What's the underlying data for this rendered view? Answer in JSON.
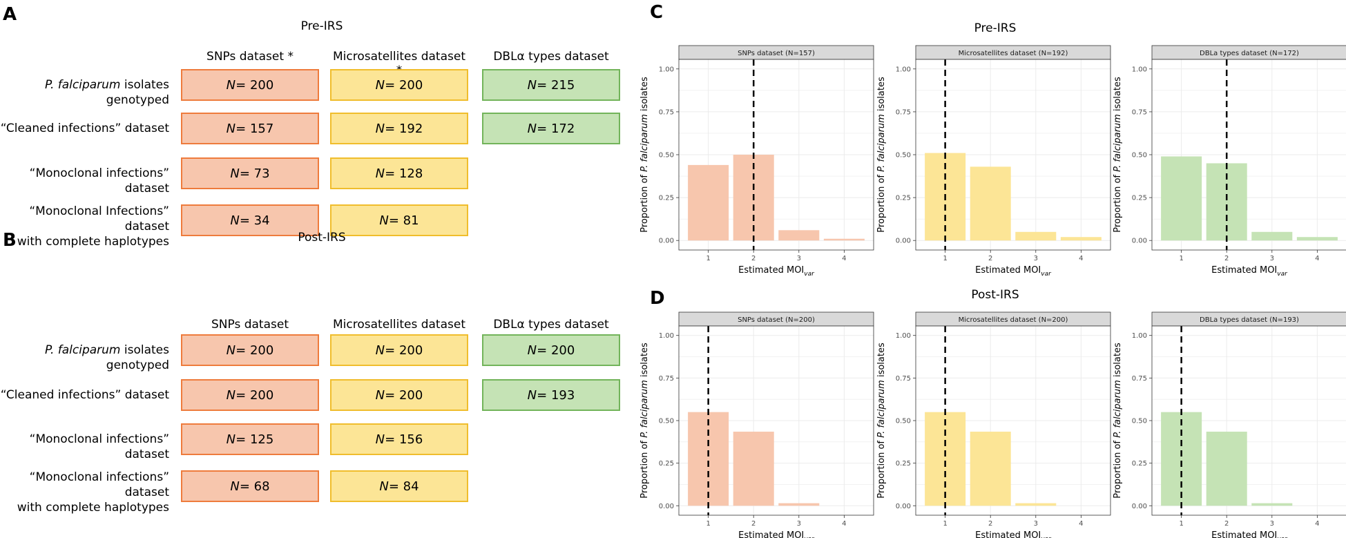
{
  "colors": {
    "snp": "#f7c6ad",
    "snp_border": "#ee7b3c",
    "msat": "#fce596",
    "msat_border": "#f0bd2c",
    "dbl": "#c5e3b5",
    "dbl_border": "#72b45a",
    "strip": "#d9d9d9",
    "grid": "#ebebeb"
  },
  "panel_a": {
    "letter": "A",
    "title": "Pre-IRS",
    "col_heads": [
      "SNPs dataset *",
      "Microsatellites dataset *",
      "DBLα types dataset"
    ],
    "rows": [
      {
        "label_italic": "P. falciparum",
        "label_rest": " isolates genotyped",
        "line2": "",
        "values": [
          "N = 200",
          "N = 200",
          "N = 215"
        ]
      },
      {
        "label_italic": "",
        "label_rest": "“Cleaned infections” dataset",
        "line2": "",
        "values": [
          "N = 157",
          "N = 192",
          "N = 172"
        ]
      },
      {
        "label_italic": "",
        "label_rest": "“Monoclonal infections” dataset",
        "line2": "",
        "values": [
          "N = 73",
          "N = 128",
          ""
        ]
      },
      {
        "label_italic": "",
        "label_rest": "“Monoclonal Infections” dataset",
        "line2": "with complete haplotypes",
        "values": [
          "N = 34",
          "N = 81",
          ""
        ]
      }
    ]
  },
  "panel_b": {
    "letter": "B",
    "title": "Post-IRS",
    "col_heads": [
      "SNPs dataset",
      "Microsatellites dataset",
      "DBLα types dataset"
    ],
    "rows": [
      {
        "label_italic": "P. falciparum",
        "label_rest": " isolates genotyped",
        "line2": "",
        "values": [
          "N = 200",
          "N = 200",
          "N = 200"
        ]
      },
      {
        "label_italic": "",
        "label_rest": "“Cleaned infections” dataset",
        "line2": "",
        "values": [
          "N = 200",
          "N = 200",
          "N = 193"
        ]
      },
      {
        "label_italic": "",
        "label_rest": "“Monoclonal infections” dataset",
        "line2": "",
        "values": [
          "N = 125",
          "N = 156",
          ""
        ]
      },
      {
        "label_italic": "",
        "label_rest": "“Monoclonal infections” dataset",
        "line2": "with complete haplotypes",
        "values": [
          "N = 68",
          "N = 84",
          ""
        ]
      }
    ]
  },
  "chart_data": [
    {
      "panel": "C",
      "title": "Pre-IRS",
      "type": "bar",
      "strip": "SNPs dataset (N=157)",
      "categories": [
        "1",
        "2",
        "3",
        "4"
      ],
      "values": [
        0.44,
        0.5,
        0.06,
        0.01
      ],
      "vline": 2,
      "ylim": [
        0,
        1
      ],
      "yticks": [
        "0.00",
        "0.25",
        "0.50",
        "0.75",
        "1.00"
      ],
      "ylabel_pre": "Proportion of ",
      "ylabel_italic": "P. falciparum",
      "ylabel_post": " isolates",
      "xlabel": "Estimated MOI",
      "xlabel_sub": "var",
      "color": "snp"
    },
    {
      "panel": "",
      "title": "",
      "type": "bar",
      "strip": "Microsatellites dataset (N=192)",
      "categories": [
        "1",
        "2",
        "3",
        "4"
      ],
      "values": [
        0.51,
        0.43,
        0.05,
        0.02
      ],
      "vline": 1,
      "ylim": [
        0,
        1
      ],
      "yticks": [
        "0.00",
        "0.25",
        "0.50",
        "0.75",
        "1.00"
      ],
      "ylabel_pre": "Proportion of ",
      "ylabel_italic": "P. falciparum",
      "ylabel_post": " isolates",
      "xlabel": "Estimated MOI",
      "xlabel_sub": "var",
      "color": "msat"
    },
    {
      "panel": "",
      "title": "",
      "type": "bar",
      "strip": "DBLa types dataset (N=172)",
      "categories": [
        "1",
        "2",
        "3",
        "4"
      ],
      "values": [
        0.49,
        0.45,
        0.05,
        0.02
      ],
      "vline": 2,
      "ylim": [
        0,
        1
      ],
      "yticks": [
        "0.00",
        "0.25",
        "0.50",
        "0.75",
        "1.00"
      ],
      "ylabel_pre": "Proportion of ",
      "ylabel_italic": "P. falciparum",
      "ylabel_post": " isolates",
      "xlabel": "Estimated MOI",
      "xlabel_sub": "var",
      "color": "dbl"
    },
    {
      "panel": "D",
      "title": "Post-IRS",
      "type": "bar",
      "strip": "SNPs dataset (N=200)",
      "categories": [
        "1",
        "2",
        "3",
        "4"
      ],
      "values": [
        0.55,
        0.435,
        0.015,
        0
      ],
      "vline": 1,
      "ylim": [
        0,
        1
      ],
      "yticks": [
        "0.00",
        "0.25",
        "0.50",
        "0.75",
        "1.00"
      ],
      "ylabel_pre": "Proportion of ",
      "ylabel_italic": "P. falciparum",
      "ylabel_post": " isolates",
      "xlabel": "Estimated MOI",
      "xlabel_sub": "var",
      "color": "snp"
    },
    {
      "panel": "",
      "title": "",
      "type": "bar",
      "strip": "Microsatellites dataset (N=200)",
      "categories": [
        "1",
        "2",
        "3",
        "4"
      ],
      "values": [
        0.55,
        0.435,
        0.015,
        0
      ],
      "vline": 1,
      "ylim": [
        0,
        1
      ],
      "yticks": [
        "0.00",
        "0.25",
        "0.50",
        "0.75",
        "1.00"
      ],
      "ylabel_pre": "Proportion of ",
      "ylabel_italic": "P. falciparum",
      "ylabel_post": " isolates",
      "xlabel": "Estimated MOI",
      "xlabel_sub": "var",
      "color": "msat"
    },
    {
      "panel": "",
      "title": "",
      "type": "bar",
      "strip": "DBLa types dataset (N=193)",
      "categories": [
        "1",
        "2",
        "3",
        "4"
      ],
      "values": [
        0.55,
        0.435,
        0.015,
        0
      ],
      "vline": 1,
      "ylim": [
        0,
        1
      ],
      "yticks": [
        "0.00",
        "0.25",
        "0.50",
        "0.75",
        "1.00"
      ],
      "ylabel_pre": "Proportion of ",
      "ylabel_italic": "P. falciparum",
      "ylabel_post": " isolates",
      "xlabel": "Estimated MOI",
      "xlabel_sub": "var",
      "color": "dbl"
    }
  ]
}
